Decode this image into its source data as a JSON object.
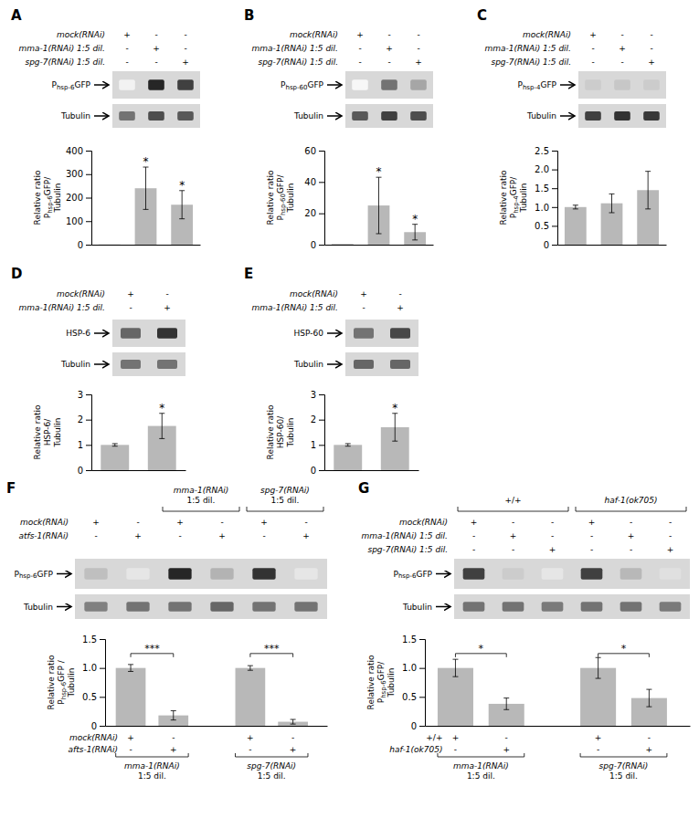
{
  "chart_data": [
    {
      "type": "bar",
      "title": "A",
      "color": "#b8b8b8",
      "categories": [
        null,
        null,
        null
      ],
      "values": [
        1,
        240,
        170
      ],
      "errors": [
        0,
        90,
        60
      ],
      "ylim": [
        0,
        400
      ],
      "yticks": [
        0,
        100,
        200,
        300,
        400
      ],
      "ylabel": [
        [
          "Relative ratio"
        ],
        [
          "P",
          "hsp-6",
          "GFP/"
        ],
        [
          "Tubulin"
        ]
      ],
      "stars": [
        null,
        "*",
        "*"
      ],
      "conditions": [
        {
          "name": "mock(RNAi)",
          "signs": [
            "+",
            "-",
            "-"
          ]
        },
        {
          "name": "mma-1(RNAi) 1:5 dil.",
          "signs": [
            "-",
            "+",
            "-"
          ]
        },
        {
          "name": "spg-7(RNAi) 1:5 dil.",
          "signs": [
            "-",
            "-",
            "+"
          ]
        }
      ],
      "blots": [
        {
          "label": [
            "P",
            "hsp-6",
            "GFP"
          ],
          "bands": [
            0.05,
            0.85,
            0.75
          ]
        },
        {
          "label": [
            "Tubulin"
          ],
          "bands": [
            0.55,
            0.7,
            0.65
          ]
        }
      ]
    },
    {
      "type": "bar",
      "title": "B",
      "color": "#b8b8b8",
      "categories": [
        null,
        null,
        null
      ],
      "values": [
        0.5,
        25,
        8
      ],
      "errors": [
        0,
        18,
        5
      ],
      "ylim": [
        0,
        60
      ],
      "yticks": [
        0,
        20,
        40,
        60
      ],
      "ylabel": [
        [
          "Relative ratio"
        ],
        [
          "P",
          "hsp-60",
          "GFP/"
        ],
        [
          "Tubulin"
        ]
      ],
      "stars": [
        null,
        "*",
        "*"
      ],
      "conditions": [
        {
          "name": "mock(RNAi)",
          "signs": [
            "+",
            "-",
            "-"
          ]
        },
        {
          "name": "mma-1(RNAi) 1:5 dil.",
          "signs": [
            "-",
            "+",
            "-"
          ]
        },
        {
          "name": "spg-7(RNAi) 1:5 dil.",
          "signs": [
            "-",
            "-",
            "+"
          ]
        }
      ],
      "blots": [
        {
          "label": [
            "P",
            "hsp-60",
            "GFP"
          ],
          "bands": [
            0.03,
            0.55,
            0.35
          ]
        },
        {
          "label": [
            "Tubulin"
          ],
          "bands": [
            0.65,
            0.75,
            0.7
          ]
        }
      ]
    },
    {
      "type": "bar",
      "title": "C",
      "color": "#b8b8b8",
      "categories": [
        null,
        null,
        null
      ],
      "values": [
        1.0,
        1.1,
        1.45
      ],
      "errors": [
        0.05,
        0.25,
        0.5
      ],
      "ylim": [
        0,
        2.5
      ],
      "yticks": [
        0,
        0.5,
        {
          "value": 1.0,
          "label": "1.0"
        },
        1.5,
        {
          "value": 2.0,
          "label": "2.0"
        },
        2.5
      ],
      "ylabel": [
        [
          "Relative ratio"
        ],
        [
          "P",
          "hsp-4",
          "GFP/"
        ],
        [
          "Tubulin"
        ]
      ],
      "conditions": [
        {
          "name": "mock(RNAi)",
          "signs": [
            "+",
            "-",
            "-"
          ]
        },
        {
          "name": "mma-1(RNAi) 1:5 dil.",
          "signs": [
            "-",
            "+",
            "-"
          ]
        },
        {
          "name": "spg-7(RNAi) 1:5 dil.",
          "signs": [
            "-",
            "-",
            "+"
          ]
        }
      ],
      "blots": [
        {
          "label": [
            "P",
            "hsp-4",
            "GFP"
          ],
          "bands": [
            0.2,
            0.22,
            0.2
          ]
        },
        {
          "label": [
            "Tubulin"
          ],
          "bands": [
            0.75,
            0.8,
            0.78
          ]
        }
      ]
    },
    {
      "type": "bar",
      "title": "D",
      "color": "#b8b8b8",
      "categories": [
        null,
        null
      ],
      "values": [
        1.0,
        1.75
      ],
      "errors": [
        0.05,
        0.5
      ],
      "ylim": [
        0,
        3
      ],
      "yticks": [
        0,
        1,
        2,
        3
      ],
      "ylabel": [
        [
          "Relative ratio"
        ],
        [
          "HSP-6/"
        ],
        [
          "Tubulin"
        ]
      ],
      "stars": [
        null,
        "*"
      ],
      "conditions": [
        {
          "name": "mock(RNAi)",
          "signs": [
            "+",
            "-"
          ]
        },
        {
          "name": "mma-1(RNAi) 1:5 dil.",
          "signs": [
            "-",
            "+"
          ]
        }
      ],
      "blots": [
        {
          "label": [
            "HSP-6"
          ],
          "bands": [
            0.6,
            0.8
          ]
        },
        {
          "label": [
            "Tubulin"
          ],
          "bands": [
            0.55,
            0.55
          ]
        }
      ]
    },
    {
      "type": "bar",
      "title": "E",
      "color": "#b8b8b8",
      "categories": [
        null,
        null
      ],
      "values": [
        1.0,
        1.7
      ],
      "errors": [
        0.05,
        0.55
      ],
      "ylim": [
        0,
        3
      ],
      "yticks": [
        0,
        1,
        2,
        3
      ],
      "ylabel": [
        [
          "Relative ratio"
        ],
        [
          "HSP-60/"
        ],
        [
          "Tubulin"
        ]
      ],
      "stars": [
        null,
        "*"
      ],
      "conditions": [
        {
          "name": "mock(RNAi)",
          "signs": [
            "+",
            "-"
          ]
        },
        {
          "name": "mma-1(RNAi) 1:5 dil.",
          "signs": [
            "-",
            "+"
          ]
        }
      ],
      "blots": [
        {
          "label": [
            "HSP-60"
          ],
          "bands": [
            0.55,
            0.72
          ]
        },
        {
          "label": [
            "Tubulin"
          ],
          "bands": [
            0.6,
            0.6
          ]
        }
      ]
    },
    {
      "type": "bar",
      "title": "F",
      "color": "#b8b8b8",
      "categories": [
        null,
        null,
        null,
        null
      ],
      "values": [
        1.0,
        0.18,
        1.0,
        0.07
      ],
      "errors": [
        0.06,
        0.08,
        0.04,
        0.04
      ],
      "ylim": [
        0,
        1.5
      ],
      "yticks": [
        0,
        0.5,
        {
          "value": 1.0,
          "label": "1.0"
        },
        1.5
      ],
      "ylabel": [
        [
          "Relative ratio"
        ],
        [
          "P",
          "hsp-6",
          "GFP /"
        ],
        [
          "Tubulin"
        ]
      ],
      "brackets": [
        {
          "from": 0,
          "to": 1,
          "y": 1.25,
          "label": "***"
        },
        {
          "from": 2,
          "to": 3,
          "y": 1.25,
          "label": "***"
        }
      ],
      "groups": [
        {
          "label": [
            "mma-1(RNAi)",
            "1:5 dil."
          ],
          "from": 2,
          "to": 3
        },
        {
          "label": [
            "spg-7(RNAi)",
            "1:5 dil."
          ],
          "from": 4,
          "to": 5
        }
      ],
      "conditions": [
        {
          "name": "mock(RNAi)",
          "signs": [
            "+",
            "-",
            "+",
            "-",
            "+",
            "-"
          ]
        },
        {
          "name": "atfs-1(RNAi)",
          "signs": [
            "-",
            "+",
            "-",
            "+",
            "-",
            "+"
          ]
        }
      ],
      "blots": [
        {
          "label": [
            "P",
            "hsp-6",
            "GFP"
          ],
          "bands": [
            0.25,
            0.1,
            0.85,
            0.3,
            0.8,
            0.1
          ]
        },
        {
          "label": [
            "Tubulin"
          ],
          "bands": [
            0.5,
            0.55,
            0.55,
            0.6,
            0.55,
            0.55
          ]
        }
      ],
      "bar_conditions": [
        {
          "name": "mock(RNAi)",
          "signs": [
            "+",
            "-",
            "+",
            "-"
          ]
        },
        {
          "name": "afts-1(RNAi)",
          "signs": [
            "-",
            "+",
            "-",
            "+"
          ]
        }
      ],
      "bar_groups": [
        {
          "label": [
            "mma-1(RNAi)",
            "1:5 dil."
          ],
          "from": 0,
          "to": 1
        },
        {
          "label": [
            "spg-7(RNAi)",
            "1:5 dil."
          ],
          "from": 2,
          "to": 3
        }
      ]
    },
    {
      "type": "bar",
      "title": "G",
      "color": "#b8b8b8",
      "categories": [
        null,
        null,
        null,
        null
      ],
      "values": [
        1.0,
        0.38,
        1.0,
        0.48
      ],
      "errors": [
        0.15,
        0.1,
        0.18,
        0.15
      ],
      "ylim": [
        0,
        1.5
      ],
      "yticks": [
        0,
        0.5,
        {
          "value": 1.0,
          "label": "1.0"
        },
        1.5
      ],
      "ylabel": [
        [
          "Relative ratio"
        ],
        [
          "P",
          "hsp-6",
          "GFP/"
        ],
        [
          "Tubulin"
        ]
      ],
      "brackets": [
        {
          "from": 0,
          "to": 1,
          "y": 1.25,
          "label": "*"
        },
        {
          "from": 2,
          "to": 3,
          "y": 1.25,
          "label": "*"
        }
      ],
      "groups": [
        {
          "label": [
            "+/+"
          ],
          "from": 0,
          "to": 2
        },
        {
          "label": [
            "haf-1(ok705)"
          ],
          "from": 3,
          "to": 5
        }
      ],
      "conditions": [
        {
          "name": "mock(RNAi)",
          "signs": [
            "+",
            "-",
            "-",
            "+",
            "-",
            "-"
          ]
        },
        {
          "name": "mma-1(RNAi) 1:5 dil.",
          "signs": [
            "-",
            "+",
            "-",
            "-",
            "+",
            "-"
          ]
        },
        {
          "name": "spg-7(RNAi) 1:5 dil.",
          "signs": [
            "-",
            "-",
            "+",
            "-",
            "-",
            "+"
          ]
        }
      ],
      "blots": [
        {
          "label": [
            "P",
            "hsp-6",
            "GFP"
          ],
          "bands": [
            0.75,
            0.2,
            0.1,
            0.75,
            0.28,
            0.12
          ]
        },
        {
          "label": [
            "Tubulin"
          ],
          "bands": [
            0.55,
            0.55,
            0.52,
            0.55,
            0.55,
            0.52
          ]
        }
      ],
      "bar_conditions": [
        {
          "name": "+/+",
          "signs": [
            "+",
            "-",
            "+",
            "-"
          ]
        },
        {
          "name": "haf-1(ok705)",
          "signs": [
            "-",
            "+",
            "-",
            "+"
          ]
        }
      ],
      "bar_groups": [
        {
          "label": [
            "mma-1(RNAi)",
            "1:5 dil."
          ],
          "from": 0,
          "to": 1
        },
        {
          "label": [
            "spg-7(RNAi)",
            "1:5 dil."
          ],
          "from": 2,
          "to": 3
        }
      ]
    }
  ]
}
